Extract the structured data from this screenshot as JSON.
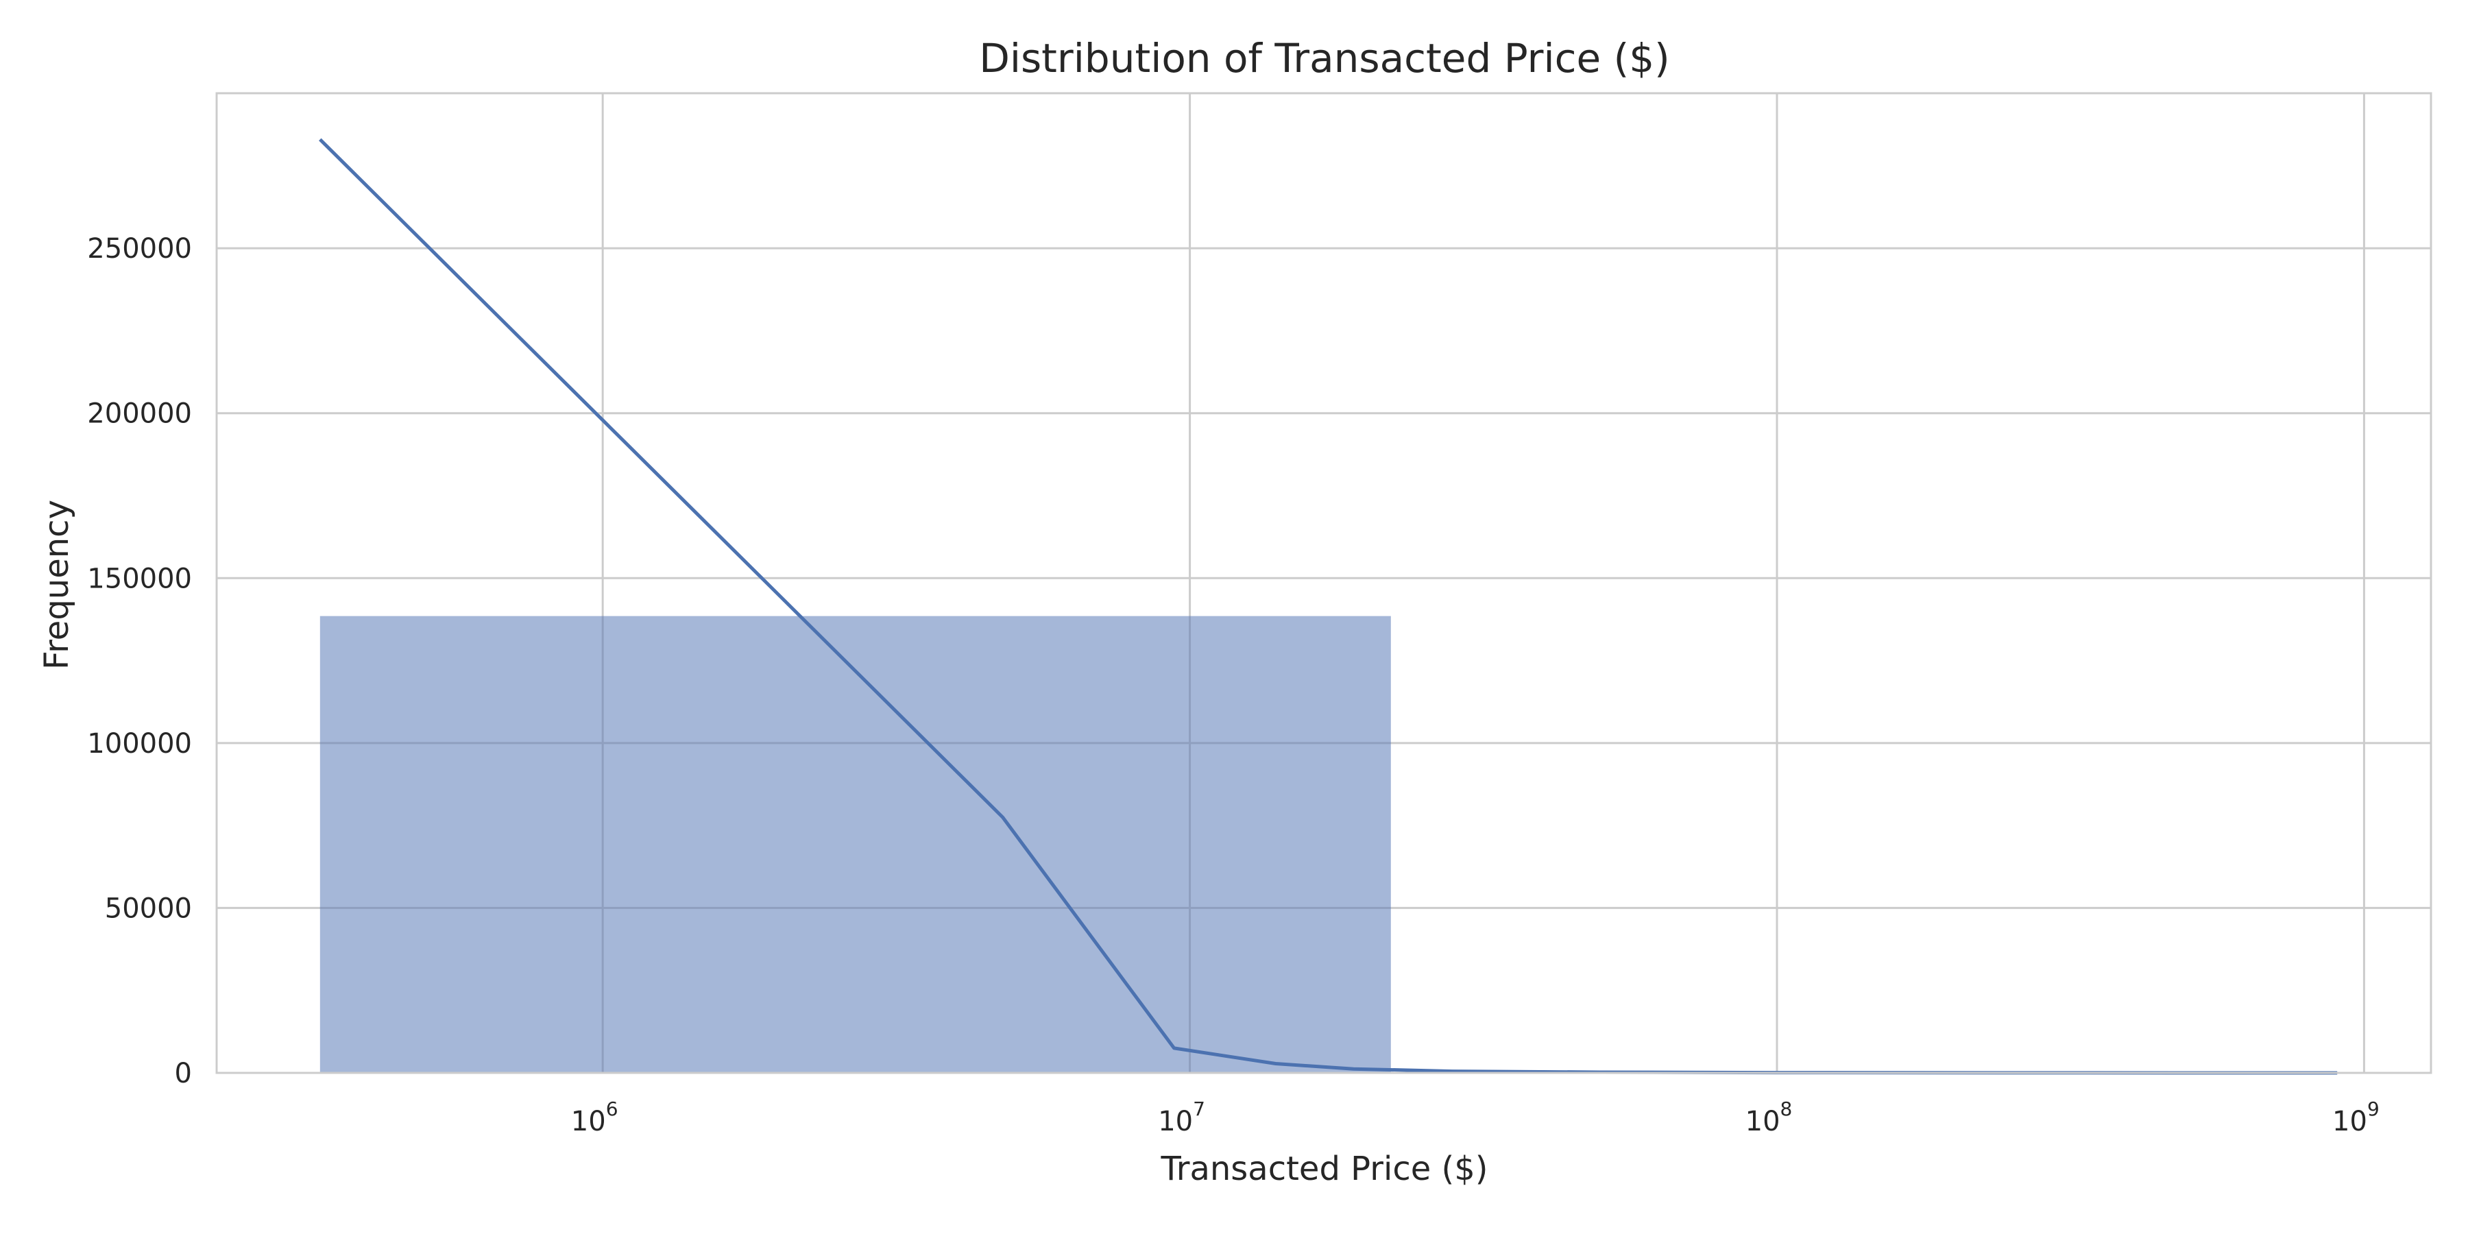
{
  "chart_data": {
    "type": "bar",
    "title": "Distribution of Transacted Price ($)",
    "xlabel": "Transacted Price ($)",
    "ylabel": "Frequency",
    "x_scale": "log",
    "xlim": [
      220000,
      1300000000
    ],
    "ylim": [
      0,
      297000
    ],
    "grid": true,
    "x_ticks": [
      {
        "value": 1000000,
        "base": "10",
        "exp": "6"
      },
      {
        "value": 10000000,
        "base": "10",
        "exp": "7"
      },
      {
        "value": 100000000,
        "base": "10",
        "exp": "8"
      },
      {
        "value": 1000000000,
        "base": "10",
        "exp": "9"
      }
    ],
    "y_ticks": [
      {
        "value": 0,
        "label": "0"
      },
      {
        "value": 50000,
        "label": "50000"
      },
      {
        "value": 100000,
        "label": "100000"
      },
      {
        "value": 150000,
        "label": "150000"
      },
      {
        "value": 200000,
        "label": "200000"
      },
      {
        "value": 250000,
        "label": "250000"
      }
    ],
    "bars": [
      {
        "x_start": 330000,
        "x_end": 22000000,
        "value": 138500
      }
    ],
    "kde_line": {
      "x": [
        330000,
        4800000,
        9400000,
        14000000,
        19000000,
        28000000,
        50000000,
        100000000,
        300000000,
        900000000
      ],
      "y": [
        283000,
        77500,
        7500,
        2800,
        1200,
        500,
        200,
        80,
        30,
        10
      ]
    },
    "colors": {
      "bar_fill": "#a5b7d8",
      "line": "#4c72b0",
      "grid": "#cccccc",
      "text": "#262626",
      "background": "#ffffff"
    }
  }
}
